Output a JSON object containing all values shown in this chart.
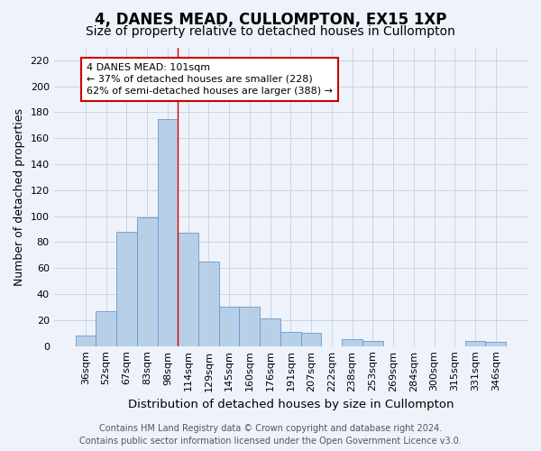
{
  "title": "4, DANES MEAD, CULLOMPTON, EX15 1XP",
  "subtitle": "Size of property relative to detached houses in Cullompton",
  "xlabel": "Distribution of detached houses by size in Cullompton",
  "ylabel": "Number of detached properties",
  "categories": [
    "36sqm",
    "52sqm",
    "67sqm",
    "83sqm",
    "98sqm",
    "114sqm",
    "129sqm",
    "145sqm",
    "160sqm",
    "176sqm",
    "191sqm",
    "207sqm",
    "222sqm",
    "238sqm",
    "253sqm",
    "269sqm",
    "284sqm",
    "300sqm",
    "315sqm",
    "331sqm",
    "346sqm"
  ],
  "values": [
    8,
    27,
    88,
    99,
    175,
    87,
    65,
    30,
    30,
    21,
    11,
    10,
    0,
    5,
    4,
    0,
    0,
    0,
    0,
    4,
    3
  ],
  "bar_color": "#b8cfe8",
  "bar_edge_color": "#6699cc",
  "background_color": "#eef2fa",
  "grid_color": "#c5d0e0",
  "marker_line_color": "#cc0000",
  "annotation_box_edge": "#cc0000",
  "annotation_box_fill": "#ffffff",
  "marker_label": "4 DANES MEAD: 101sqm",
  "annotation_line1": "← 37% of detached houses are smaller (228)",
  "annotation_line2": "62% of semi-detached houses are larger (388) →",
  "footer1": "Contains HM Land Registry data © Crown copyright and database right 2024.",
  "footer2": "Contains public sector information licensed under the Open Government Licence v3.0.",
  "ylim_max": 230,
  "yticks": [
    0,
    20,
    40,
    60,
    80,
    100,
    120,
    140,
    160,
    180,
    200,
    220
  ],
  "marker_bin_index": 4,
  "title_fontsize": 12,
  "subtitle_fontsize": 10,
  "xlabel_fontsize": 9.5,
  "ylabel_fontsize": 9,
  "tick_fontsize": 8,
  "annot_fontsize": 8,
  "footer_fontsize": 7
}
